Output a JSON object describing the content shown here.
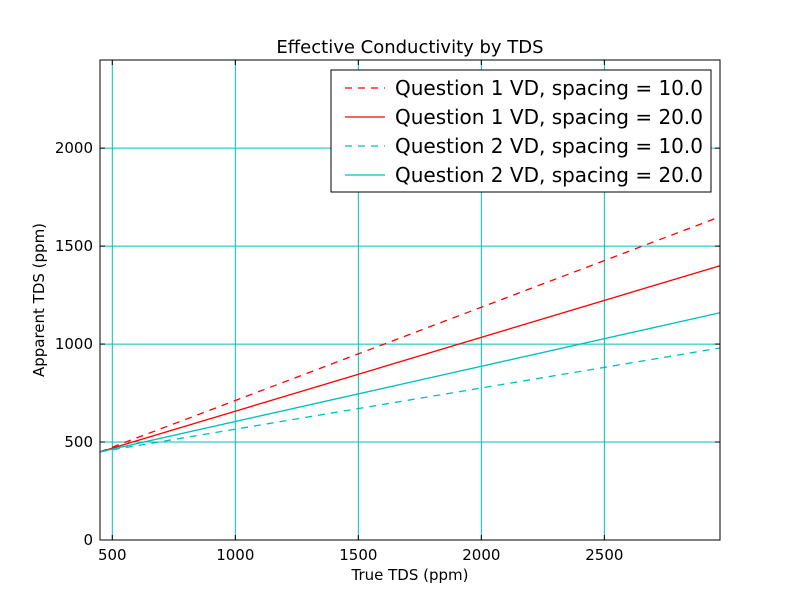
{
  "chart_data": {
    "type": "line",
    "title": "Effective Conductivity by TDS",
    "xlabel": "True TDS (ppm)",
    "ylabel": "Apparent TDS (ppm)",
    "xlim": [
      450,
      2970
    ],
    "ylim": [
      0,
      2450
    ],
    "xticks": [
      500,
      1000,
      1500,
      2000,
      2500
    ],
    "yticks": [
      0,
      500,
      1000,
      1500,
      2000
    ],
    "grid": true,
    "grid_color": "#00bfbf",
    "legend_position": "top-right",
    "x": [
      450,
      2970
    ],
    "series": [
      {
        "name": "Question 1 VD, spacing = 10.0",
        "color": "#ff0000",
        "dash": true,
        "values": [
          450,
          1650
        ]
      },
      {
        "name": "Question 1 VD, spacing = 20.0",
        "color": "#ff0000",
        "dash": false,
        "values": [
          450,
          1400
        ]
      },
      {
        "name": "Question 2 VD, spacing = 10.0",
        "color": "#00bfbf",
        "dash": true,
        "values": [
          450,
          980
        ]
      },
      {
        "name": "Question 2 VD, spacing = 20.0",
        "color": "#00bfbf",
        "dash": false,
        "values": [
          450,
          1160
        ]
      }
    ]
  }
}
